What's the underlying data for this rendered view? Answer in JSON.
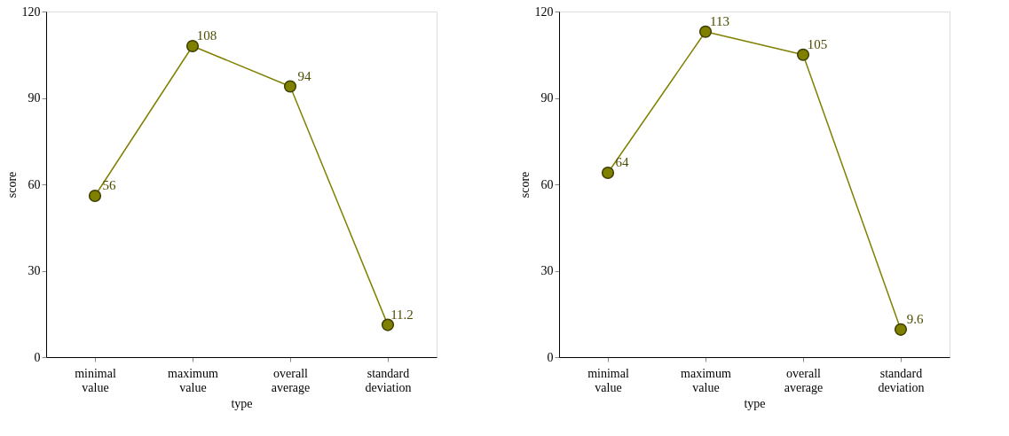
{
  "chart_data": [
    {
      "type": "line",
      "xlabel": "type",
      "ylabel": "score",
      "categories": [
        "minimal value",
        "maximum value",
        "overall average",
        "standard deviation"
      ],
      "values": [
        56,
        108,
        94,
        11.2
      ],
      "color": "#808000",
      "ylim": [
        0,
        120
      ],
      "yticks": [
        0,
        30,
        60,
        90,
        120
      ],
      "grid": false,
      "marker": "circle",
      "line_style": "solid",
      "data_labels": true
    },
    {
      "type": "line",
      "xlabel": "type",
      "ylabel": "score",
      "categories": [
        "minimal value",
        "maximum value",
        "overall average",
        "standard deviation"
      ],
      "values": [
        64,
        113,
        105,
        9.6
      ],
      "color": "#808000",
      "ylim": [
        0,
        120
      ],
      "yticks": [
        0,
        30,
        60,
        90,
        120
      ],
      "grid": false,
      "marker": "circle",
      "line_style": "solid",
      "data_labels": true
    }
  ]
}
